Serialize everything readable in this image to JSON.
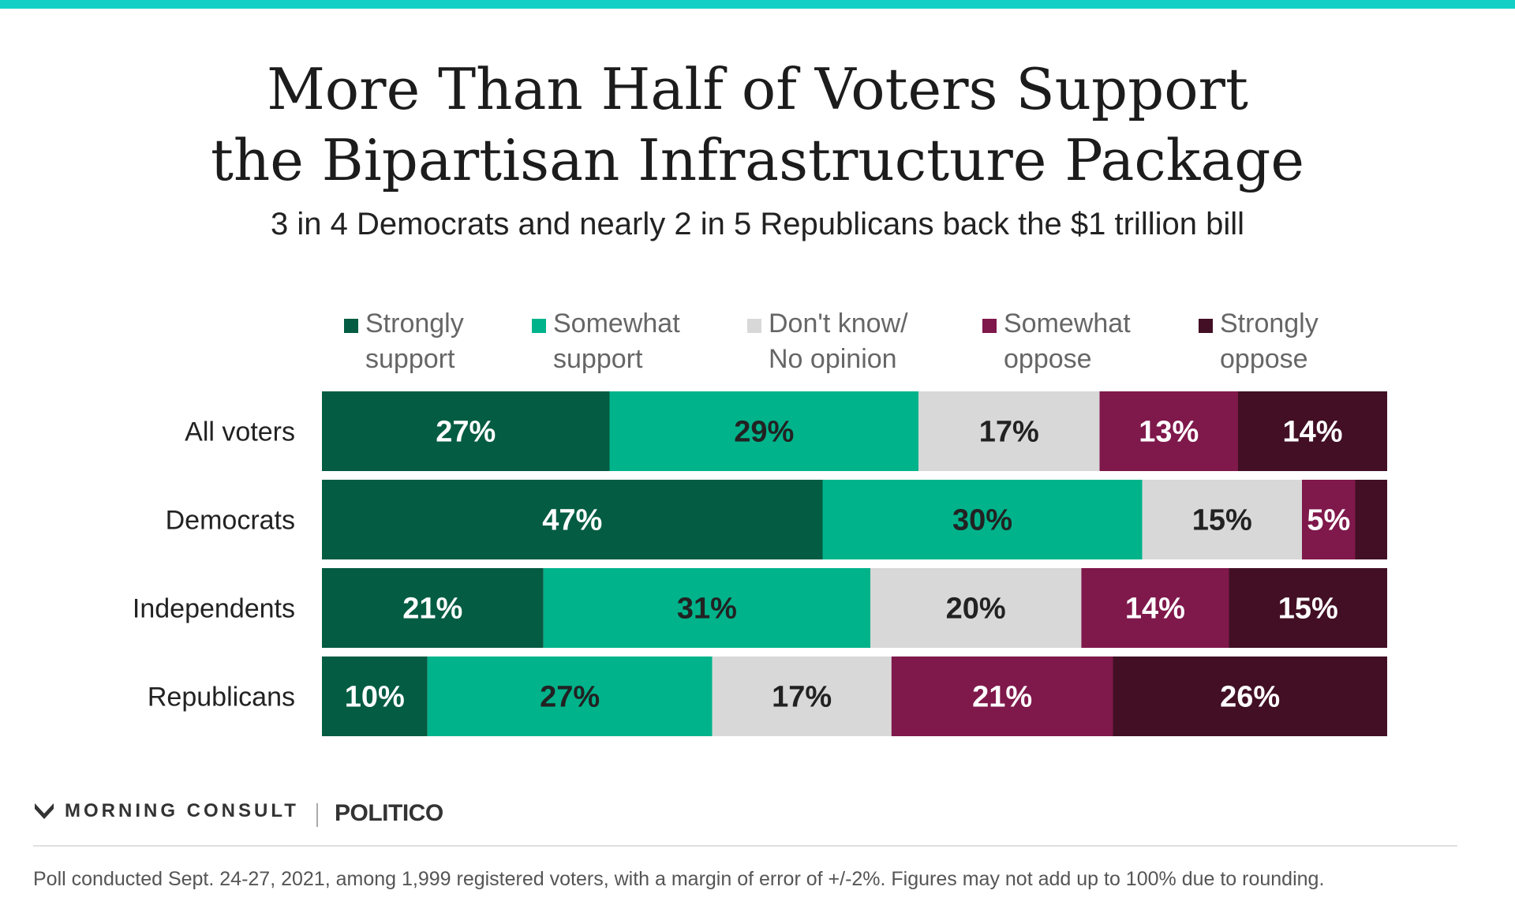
{
  "colors": {
    "accent_bar": "#12d0c6",
    "strongly_support": "#045c42",
    "somewhat_support": "#00b38b",
    "dont_know": "#d8d8d8",
    "somewhat_oppose": "#7f184b",
    "strongly_oppose": "#420f24"
  },
  "header": {
    "title_line1": "More Than Half of Voters Support",
    "title_line2": "the Bipartisan Infrastructure Package",
    "subtitle": "3 in 4 Democrats and nearly 2 in 5 Republicans back the $1 trillion bill"
  },
  "legend": [
    {
      "label": "Strongly\nsupport",
      "color": "#045c42"
    },
    {
      "label": "Somewhat\nsupport",
      "color": "#00b38b"
    },
    {
      "label": "Don't know/\nNo opinion",
      "color": "#d8d8d8"
    },
    {
      "label": "Somewhat\noppose",
      "color": "#7f184b"
    },
    {
      "label": "Strongly\noppose",
      "color": "#420f24"
    }
  ],
  "chart_data": {
    "type": "bar",
    "orientation": "horizontal",
    "stacked": true,
    "categories": [
      "All voters",
      "Democrats",
      "Independents",
      "Republicans"
    ],
    "series": [
      {
        "name": "Strongly support",
        "values": [
          27,
          47,
          21,
          10
        ],
        "labels": [
          "27%",
          "47%",
          "21%",
          "10%"
        ]
      },
      {
        "name": "Somewhat support",
        "values": [
          29,
          30,
          31,
          27
        ],
        "labels": [
          "29%",
          "30%",
          "31%",
          "27%"
        ]
      },
      {
        "name": "Don't know/No opinion",
        "values": [
          17,
          15,
          20,
          17
        ],
        "labels": [
          "17%",
          "15%",
          "20%",
          "17%"
        ]
      },
      {
        "name": "Somewhat oppose",
        "values": [
          13,
          5,
          14,
          21
        ],
        "labels": [
          "13%",
          "5%",
          "14%",
          "21%"
        ]
      },
      {
        "name": "Strongly oppose",
        "values": [
          14,
          3,
          15,
          26
        ],
        "labels": [
          "14%",
          "",
          "15%",
          "26%"
        ]
      }
    ],
    "label_colors": [
      "#ffffff",
      "#222222",
      "#222222",
      "#ffffff",
      "#ffffff"
    ],
    "xlim": [
      0,
      100
    ],
    "legend_position": "top",
    "grid": false
  },
  "branding": {
    "logo_text": "MORNING CONSULT",
    "partner": "POLITICO"
  },
  "footnote": "Poll conducted Sept. 24-27, 2021, among 1,999 registered voters, with a margin of error of +/-2%. Figures may not add up to 100% due to rounding."
}
